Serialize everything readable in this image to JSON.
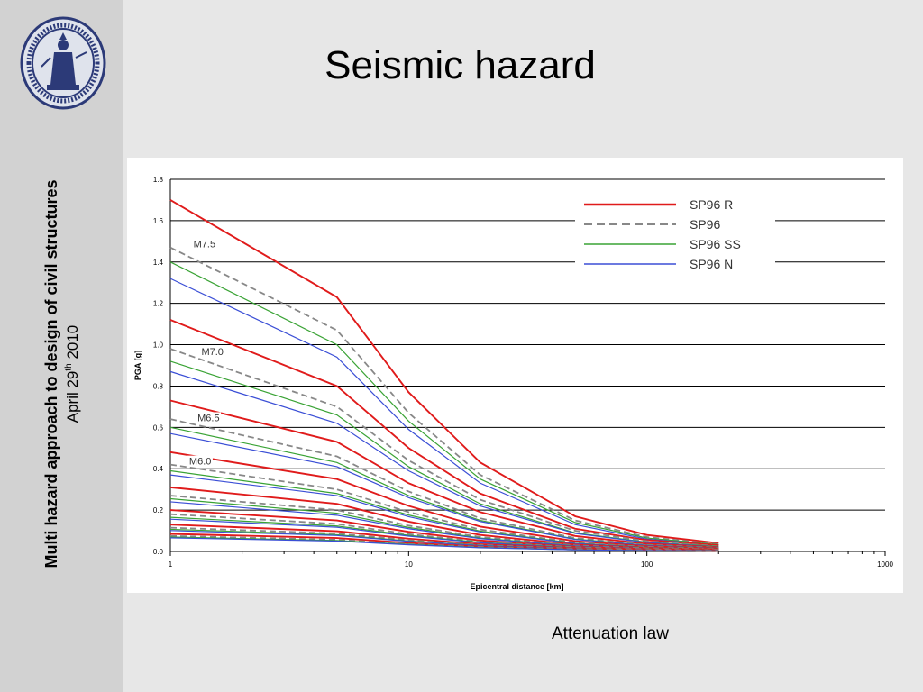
{
  "slide": {
    "title": "Seismic hazard",
    "sidebar_line1": "Multi hazard approach to design of civil structures",
    "sidebar_date_prefix": "April 29",
    "sidebar_date_sup": "th",
    "sidebar_date_suffix": " 2010",
    "caption": "Attenuation law",
    "seal": "university-seal"
  },
  "chart_data": {
    "type": "line",
    "title": "",
    "xlabel": "Epicentral distance [km]",
    "ylabel": "PGA [g]",
    "xscale": "log",
    "xlim": [
      1,
      1000
    ],
    "ylim": [
      0,
      1.8
    ],
    "x_ticks": [
      1,
      10,
      100,
      1000
    ],
    "x_tick_labels": [
      "1",
      "10",
      "100",
      "1000"
    ],
    "y_ticks": [
      0.0,
      0.2,
      0.4,
      0.6,
      0.8,
      1.0,
      1.2,
      1.4,
      1.6,
      1.8
    ],
    "y_tick_labels": [
      "0.0",
      "0.2",
      "0.4",
      "0.6",
      "0.8",
      "1.0",
      "1.2",
      "1.4",
      "1.6",
      "1.8"
    ],
    "grid": "horizontal",
    "legend_position": "top-right",
    "legend": [
      {
        "label": "SP96 R",
        "color": "#e01b1b",
        "style": "solid"
      },
      {
        "label": "SP96",
        "color": "#888888",
        "style": "dashed"
      },
      {
        "label": "SP96 SS",
        "color": "#3aa335",
        "style": "solid"
      },
      {
        "label": "SP96 N",
        "color": "#3b4fd6",
        "style": "solid"
      }
    ],
    "annotations": [
      {
        "text": "M7.5",
        "x": 1.25,
        "y": 1.47
      },
      {
        "text": "M7.0",
        "x": 1.35,
        "y": 0.95
      },
      {
        "text": "M6.5",
        "x": 1.3,
        "y": 0.63
      },
      {
        "text": "M6.0",
        "x": 1.2,
        "y": 0.42
      }
    ],
    "x": [
      1,
      5,
      10,
      20,
      50,
      100,
      200
    ],
    "series": [
      {
        "color": "#e01b1b",
        "style": "solid",
        "values": [
          1.7,
          1.23,
          0.77,
          0.43,
          0.17,
          0.08,
          0.04
        ]
      },
      {
        "color": "#888888",
        "style": "dashed",
        "values": [
          1.47,
          1.07,
          0.67,
          0.37,
          0.15,
          0.07,
          0.035
        ]
      },
      {
        "color": "#3aa335",
        "style": "solid",
        "values": [
          1.4,
          1.0,
          0.63,
          0.35,
          0.14,
          0.065,
          0.033
        ]
      },
      {
        "color": "#3b4fd6",
        "style": "solid",
        "values": [
          1.32,
          0.94,
          0.59,
          0.33,
          0.13,
          0.06,
          0.03
        ]
      },
      {
        "color": "#e01b1b",
        "style": "solid",
        "values": [
          1.12,
          0.8,
          0.5,
          0.28,
          0.11,
          0.055,
          0.03
        ]
      },
      {
        "color": "#888888",
        "style": "dashed",
        "values": [
          0.98,
          0.7,
          0.44,
          0.25,
          0.1,
          0.05,
          0.025
        ]
      },
      {
        "color": "#3aa335",
        "style": "solid",
        "values": [
          0.92,
          0.66,
          0.41,
          0.23,
          0.09,
          0.045,
          0.024
        ]
      },
      {
        "color": "#3b4fd6",
        "style": "solid",
        "values": [
          0.87,
          0.62,
          0.39,
          0.22,
          0.087,
          0.043,
          0.022
        ]
      },
      {
        "color": "#e01b1b",
        "style": "solid",
        "values": [
          0.73,
          0.53,
          0.33,
          0.19,
          0.075,
          0.037,
          0.02
        ]
      },
      {
        "color": "#888888",
        "style": "dashed",
        "values": [
          0.64,
          0.46,
          0.29,
          0.16,
          0.065,
          0.032,
          0.018
        ]
      },
      {
        "color": "#3aa335",
        "style": "solid",
        "values": [
          0.6,
          0.43,
          0.27,
          0.15,
          0.06,
          0.03,
          0.017
        ]
      },
      {
        "color": "#3b4fd6",
        "style": "solid",
        "values": [
          0.57,
          0.41,
          0.26,
          0.145,
          0.058,
          0.029,
          0.016
        ]
      },
      {
        "color": "#e01b1b",
        "style": "solid",
        "values": [
          0.48,
          0.35,
          0.22,
          0.12,
          0.05,
          0.025,
          0.014
        ]
      },
      {
        "color": "#888888",
        "style": "dashed",
        "values": [
          0.42,
          0.3,
          0.19,
          0.106,
          0.043,
          0.022,
          0.012
        ]
      },
      {
        "color": "#3aa335",
        "style": "solid",
        "values": [
          0.39,
          0.28,
          0.176,
          0.098,
          0.04,
          0.02,
          0.011
        ]
      },
      {
        "color": "#3b4fd6",
        "style": "solid",
        "values": [
          0.37,
          0.27,
          0.168,
          0.094,
          0.038,
          0.019,
          0.011
        ]
      },
      {
        "color": "#e01b1b",
        "style": "solid",
        "values": [
          0.31,
          0.23,
          0.144,
          0.08,
          0.033,
          0.017,
          0.01
        ]
      },
      {
        "color": "#888888",
        "style": "dashed",
        "values": [
          0.27,
          0.2,
          0.125,
          0.07,
          0.029,
          0.015,
          0.009
        ]
      },
      {
        "color": "#3aa335",
        "style": "solid",
        "values": [
          0.255,
          0.185,
          0.116,
          0.065,
          0.027,
          0.014,
          0.008
        ]
      },
      {
        "color": "#3b4fd6",
        "style": "solid",
        "values": [
          0.24,
          0.175,
          0.11,
          0.062,
          0.026,
          0.013,
          0.008
        ]
      },
      {
        "color": "#e01b1b",
        "style": "solid",
        "values": [
          0.2,
          0.15,
          0.095,
          0.053,
          0.022,
          0.011,
          0.007
        ]
      },
      {
        "color": "#888888",
        "style": "dashed",
        "values": [
          0.18,
          0.133,
          0.084,
          0.047,
          0.02,
          0.01,
          0.006
        ]
      },
      {
        "color": "#3aa335",
        "style": "solid",
        "values": [
          0.165,
          0.123,
          0.078,
          0.044,
          0.018,
          0.009,
          0.006
        ]
      },
      {
        "color": "#3b4fd6",
        "style": "solid",
        "values": [
          0.156,
          0.117,
          0.074,
          0.042,
          0.017,
          0.009,
          0.005
        ]
      },
      {
        "color": "#e01b1b",
        "style": "solid",
        "values": [
          0.13,
          0.098,
          0.062,
          0.035,
          0.015,
          0.008,
          0.005
        ]
      },
      {
        "color": "#888888",
        "style": "dashed",
        "values": [
          0.115,
          0.087,
          0.055,
          0.031,
          0.013,
          0.007,
          0.004
        ]
      },
      {
        "color": "#3aa335",
        "style": "solid",
        "values": [
          0.107,
          0.081,
          0.051,
          0.029,
          0.012,
          0.006,
          0.004
        ]
      },
      {
        "color": "#3b4fd6",
        "style": "solid",
        "values": [
          0.101,
          0.077,
          0.049,
          0.028,
          0.012,
          0.006,
          0.004
        ]
      },
      {
        "color": "#e01b1b",
        "style": "solid",
        "values": [
          0.085,
          0.065,
          0.041,
          0.023,
          0.01,
          0.005,
          0.003
        ]
      },
      {
        "color": "#888888",
        "style": "dashed",
        "values": [
          0.075,
          0.057,
          0.036,
          0.021,
          0.009,
          0.005,
          0.003
        ]
      },
      {
        "color": "#3aa335",
        "style": "solid",
        "values": [
          0.07,
          0.053,
          0.034,
          0.019,
          0.008,
          0.004,
          0.003
        ]
      },
      {
        "color": "#3b4fd6",
        "style": "solid",
        "values": [
          0.066,
          0.05,
          0.032,
          0.018,
          0.008,
          0.004,
          0.003
        ]
      }
    ]
  }
}
